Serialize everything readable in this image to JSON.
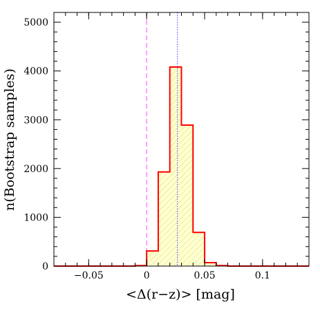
{
  "chart_data": {
    "type": "histogram",
    "xlabel": "<Δ(r−z)>   [mag]",
    "ylabel": "n(Bootstrap samples)",
    "xlim": [
      -0.08,
      0.14
    ],
    "ylim": [
      0,
      5200
    ],
    "x_ticks": [
      -0.05,
      0,
      0.05,
      0.1
    ],
    "x_tick_labels": [
      "−0.05",
      "0",
      "0.05",
      "0.1"
    ],
    "y_ticks": [
      0,
      1000,
      2000,
      3000,
      4000,
      5000
    ],
    "y_tick_labels": [
      "0",
      "1000",
      "2000",
      "3000",
      "4000",
      "5000"
    ],
    "bin_edges": [
      -0.08,
      -0.01,
      0.0,
      0.01,
      0.02,
      0.03,
      0.04,
      0.05,
      0.06,
      0.07,
      0.14
    ],
    "counts": [
      0,
      10,
      310,
      1930,
      4080,
      2890,
      690,
      70,
      10,
      0
    ],
    "vlines": [
      {
        "x": 0.0,
        "style": "dashed",
        "color": "#ff66ff"
      },
      {
        "x": 0.0265,
        "style": "dotted",
        "color": "#5a5aff"
      }
    ],
    "hist_color": "#ff0000",
    "fill_color": "#ffffd0",
    "hatch_color": "#e8e890"
  }
}
